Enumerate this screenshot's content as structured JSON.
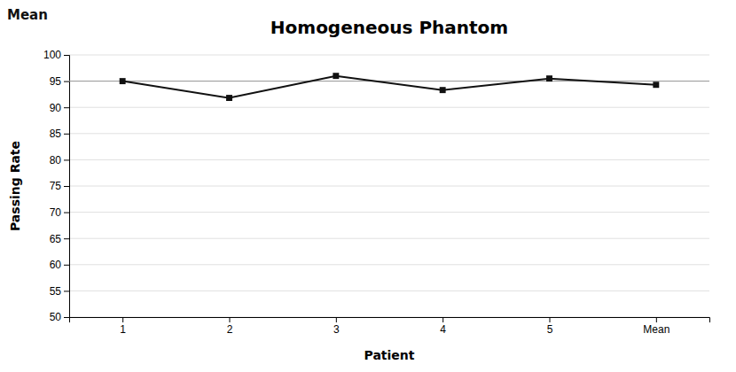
{
  "chart_data": {
    "type": "line",
    "title": "Homogeneous Phantom",
    "x_label": "Patient",
    "y_label": "Passing Rate",
    "annotations": [
      "Mean"
    ],
    "categories": [
      "1",
      "2",
      "3",
      "4",
      "5",
      "Mean"
    ],
    "values": [
      95.0,
      91.8,
      96.0,
      93.3,
      95.5,
      94.3
    ],
    "reference_line": 95.0,
    "color": "#111111",
    "marker": "square",
    "ylim": [
      50,
      100
    ],
    "yticks": [
      50,
      55,
      60,
      65,
      70,
      75,
      80,
      85,
      90,
      95,
      100
    ],
    "grid": true
  }
}
